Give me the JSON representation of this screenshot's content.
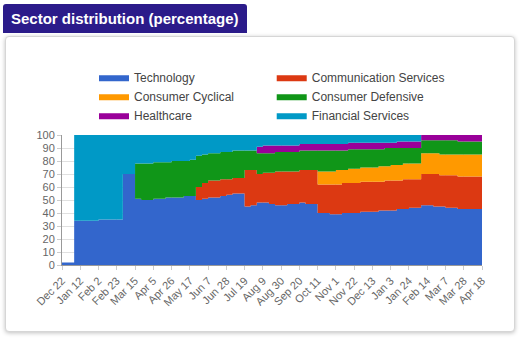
{
  "chart_data": {
    "type": "area",
    "title": "Sector distribution (percentage)",
    "stacked": true,
    "grid": true,
    "legend": "top",
    "categories": [
      "Dec 22",
      null,
      null,
      "Jan 12",
      null,
      null,
      "Feb 2",
      null,
      null,
      "Feb 23",
      null,
      null,
      "Mar 15",
      null,
      null,
      "Apr 5",
      null,
      null,
      "Apr 26",
      null,
      null,
      "May 17",
      null,
      null,
      "Jun 7",
      null,
      null,
      "Jun 28",
      null,
      null,
      "Jul 19",
      null,
      null,
      "Aug 9",
      null,
      null,
      "Aug 30",
      null,
      null,
      "Sep 20",
      null,
      null,
      "Oct 11",
      null,
      null,
      "Nov 1",
      null,
      null,
      "Nov 22",
      null,
      null,
      "Dec 13",
      null,
      null,
      "Jan 3",
      null,
      null,
      "Jan 24",
      null,
      null,
      "Feb 14",
      null,
      null,
      "Mar 7",
      null,
      null,
      "Mar 28",
      null,
      null,
      "Apr 18"
    ],
    "series": [
      {
        "name": "Technology",
        "color": "#3366cc",
        "values": [
          2,
          2,
          34,
          34,
          34,
          34,
          35,
          35,
          35,
          35,
          70,
          70,
          51,
          50,
          50,
          51,
          51,
          52,
          52,
          52,
          53,
          53,
          50,
          51,
          52,
          52,
          53,
          54,
          55,
          55,
          45,
          46,
          48,
          48,
          47,
          46,
          46,
          47,
          47,
          48,
          47,
          47,
          40,
          40,
          39,
          39,
          40,
          40,
          40,
          41,
          41,
          41,
          42,
          42,
          42,
          43,
          43,
          44,
          44,
          46,
          46,
          45,
          45,
          44,
          44,
          43,
          43,
          43,
          43,
          43
        ]
      },
      {
        "name": "Communication Services",
        "color": "#dc3912",
        "values": [
          0,
          0,
          0,
          0,
          0,
          0,
          0,
          0,
          0,
          0,
          0,
          0,
          0,
          0,
          0,
          0,
          0,
          0,
          0,
          0,
          0,
          0,
          10,
          12,
          13,
          13,
          13,
          12,
          12,
          12,
          28,
          27,
          22,
          23,
          24,
          26,
          26,
          25,
          25,
          25,
          26,
          26,
          22,
          22,
          23,
          23,
          23,
          23,
          23,
          23,
          23,
          23,
          22,
          23,
          23,
          22,
          23,
          22,
          22,
          24,
          24,
          25,
          24,
          25,
          25,
          25,
          25,
          25,
          25,
          25
        ]
      },
      {
        "name": "Consumer Cyclical",
        "color": "#ff9900",
        "values": [
          0,
          0,
          0,
          0,
          0,
          0,
          0,
          0,
          0,
          0,
          0,
          0,
          0,
          0,
          0,
          0,
          0,
          0,
          0,
          0,
          0,
          0,
          0,
          0,
          0,
          0,
          0,
          0,
          0,
          0,
          0,
          0,
          0,
          0,
          0,
          0,
          0,
          0,
          0,
          0,
          0,
          0,
          10,
          10,
          10,
          11,
          10,
          11,
          11,
          11,
          11,
          11,
          12,
          11,
          12,
          12,
          12,
          12,
          12,
          16,
          16,
          16,
          16,
          16,
          16,
          17,
          17,
          17,
          17,
          17
        ]
      },
      {
        "name": "Consumer Defensive",
        "color": "#109618",
        "values": [
          0,
          0,
          0,
          0,
          0,
          0,
          0,
          0,
          0,
          0,
          0,
          0,
          27,
          28,
          28,
          28,
          28,
          27,
          28,
          28,
          27,
          28,
          24,
          22,
          21,
          21,
          21,
          21,
          21,
          21,
          15,
          15,
          16,
          15,
          15,
          15,
          15,
          15,
          15,
          15,
          15,
          15,
          16,
          16,
          16,
          15,
          15,
          15,
          15,
          14,
          14,
          14,
          13,
          14,
          13,
          13,
          12,
          12,
          12,
          10,
          10,
          10,
          11,
          11,
          11,
          10,
          10,
          10,
          10,
          10
        ]
      },
      {
        "name": "Healthcare",
        "color": "#990099",
        "values": [
          0,
          0,
          0,
          0,
          0,
          0,
          0,
          0,
          0,
          0,
          0,
          0,
          0,
          0,
          0,
          0,
          0,
          0,
          0,
          0,
          0,
          0,
          0,
          0,
          0,
          0,
          0,
          0,
          0,
          0,
          0,
          0,
          5,
          6,
          6,
          5,
          5,
          5,
          5,
          5,
          5,
          5,
          5,
          5,
          5,
          5,
          5,
          5,
          5,
          5,
          5,
          5,
          5,
          4,
          4,
          5,
          5,
          5,
          5,
          4,
          4,
          4,
          4,
          4,
          4,
          5,
          5,
          5,
          5,
          5
        ]
      },
      {
        "name": "Financial Services",
        "color": "#0099c6",
        "values": [
          0,
          0,
          66,
          66,
          66,
          66,
          65,
          65,
          65,
          65,
          30,
          30,
          22,
          22,
          22,
          21,
          21,
          21,
          20,
          20,
          20,
          19,
          16,
          15,
          14,
          14,
          13,
          13,
          12,
          12,
          12,
          12,
          9,
          8,
          8,
          8,
          8,
          8,
          8,
          7,
          7,
          7,
          7,
          7,
          7,
          7,
          7,
          6,
          6,
          6,
          6,
          6,
          6,
          6,
          6,
          5,
          5,
          5,
          5,
          0,
          0,
          0,
          0,
          0,
          0,
          0,
          0,
          0,
          0,
          0
        ]
      }
    ],
    "ylim": [
      0,
      100
    ],
    "yticks": [
      0,
      10,
      20,
      30,
      40,
      50,
      60,
      70,
      80,
      90,
      100
    ]
  }
}
